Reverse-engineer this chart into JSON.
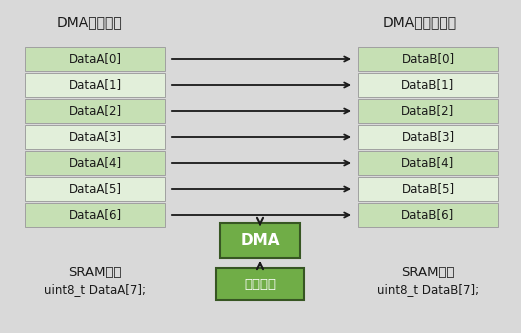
{
  "bg_color": "#d9d9d9",
  "title_left": "DMA外设地址",
  "title_right": "DMA存储器地址",
  "left_labels": [
    "DataA[0]",
    "DataA[1]",
    "DataA[2]",
    "DataA[3]",
    "DataA[4]",
    "DataA[5]",
    "DataA[6]"
  ],
  "right_labels": [
    "DataB[0]",
    "DataB[1]",
    "DataB[2]",
    "DataB[3]",
    "DataB[4]",
    "DataB[5]",
    "DataB[6]"
  ],
  "box_fill_even": "#c6e0b4",
  "box_fill_odd": "#e2efda",
  "box_edge": "#a0a0a0",
  "dma_box_color": "#70ad47",
  "dma_box_edge": "#375623",
  "soft_box_color": "#70ad47",
  "soft_box_edge": "#375623",
  "dma_label": "DMA",
  "soft_label": "软件触发",
  "bottom_left_line1": "SRAM数组",
  "bottom_left_line2": "uint8_t DataA[7];",
  "bottom_right_line1": "SRAM数组",
  "bottom_right_line2": "uint8_t DataB[7];",
  "title_left_str": "DMA外设地址",
  "title_right_str": "DMA存储器地址",
  "arrow_color": "#1a1a1a",
  "text_color": "#1a1a1a",
  "white_text": "#ffffff"
}
